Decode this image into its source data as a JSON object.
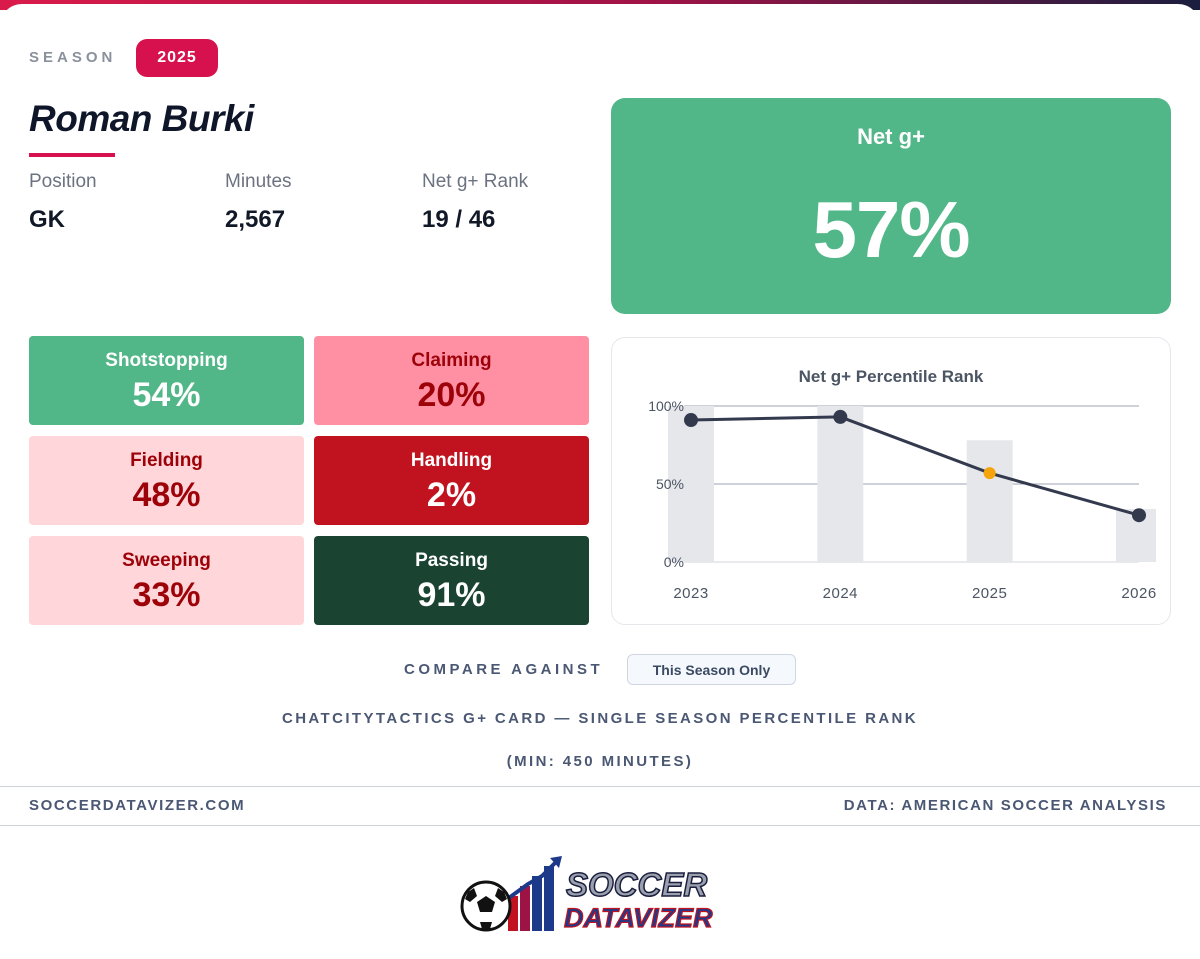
{
  "season": {
    "label": "SEASON",
    "value": "2025"
  },
  "player": {
    "name": "Roman Burki",
    "meta": [
      {
        "label": "Position",
        "value": "GK"
      },
      {
        "label": "Minutes",
        "value": "2,567"
      },
      {
        "label": "Net g+ Rank",
        "value": "19 / 46"
      }
    ]
  },
  "net_g": {
    "title": "Net g+",
    "value": "57%",
    "color": "#52b788"
  },
  "tiles": [
    {
      "label": "Shotstopping",
      "value": "54%",
      "bg": "#52b788",
      "fg": "#ffffff"
    },
    {
      "label": "Claiming",
      "value": "20%",
      "bg": "#ff8fa3",
      "fg": "#9d0208"
    },
    {
      "label": "Fielding",
      "value": "48%",
      "bg": "#ffd6d9",
      "fg": "#9d0208"
    },
    {
      "label": "Handling",
      "value": "2%",
      "bg": "#c1121f",
      "fg": "#ffffff"
    },
    {
      "label": "Sweeping",
      "value": "33%",
      "bg": "#ffd6d9",
      "fg": "#9d0208"
    },
    {
      "label": "Passing",
      "value": "91%",
      "bg": "#1b4332",
      "fg": "#ffffff"
    }
  ],
  "chart_data": {
    "type": "line",
    "title": "Net g+ Percentile Rank",
    "categories": [
      "2023",
      "2024",
      "2025",
      "2026"
    ],
    "y_ticks": [
      "0%",
      "50%",
      "100%"
    ],
    "ylim": [
      0,
      100
    ],
    "grid": true,
    "series": [
      {
        "type": "bar",
        "values": [
          100,
          100,
          78,
          34
        ],
        "color": "#e5e7eb"
      },
      {
        "type": "line",
        "values": [
          91,
          93,
          57,
          30
        ],
        "color": "#343a4e",
        "highlight_index": 2,
        "highlight_color": "#f5a40b"
      }
    ]
  },
  "compare": {
    "label": "COMPARE AGAINST",
    "button": "This Season Only"
  },
  "captions": {
    "line1": "CHATCITYTACTICS G+ CARD — SINGLE SEASON PERCENTILE RANK",
    "line2": "(MIN: 450 MINUTES)"
  },
  "footer": {
    "left": "SOCCERDATAVIZER.COM",
    "right": "DATA: AMERICAN SOCCER ANALYSIS"
  },
  "logo": {
    "line1": "SOCCER",
    "line2": "DATAVIZER"
  }
}
